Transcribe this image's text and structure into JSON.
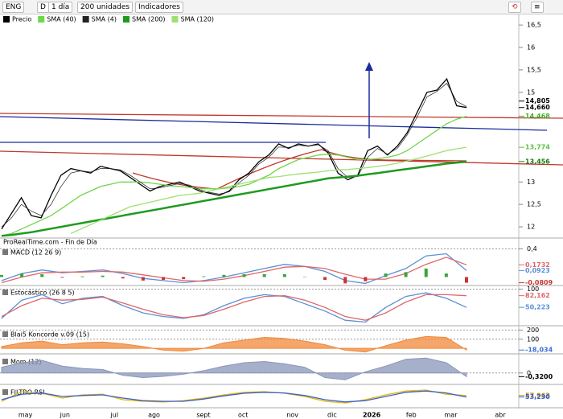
{
  "toolbar": {
    "symbol": "ENG",
    "period": "D",
    "interval": "1 día",
    "units": "200 unidades",
    "indicators": "Indicadores"
  },
  "chart_data": [
    {
      "type": "line",
      "source": "ProRealTime.com - Fin de Día",
      "categories": [
        null,
        null,
        "may",
        null,
        null,
        null,
        "jun",
        null,
        null,
        null,
        null,
        "jul",
        null,
        null,
        null,
        "ago",
        null,
        null,
        null,
        null,
        "sept",
        null,
        null,
        null,
        "oct",
        null,
        null,
        null,
        null,
        "nov",
        null,
        null,
        null,
        "dic",
        null,
        null,
        null,
        "2026",
        null,
        null,
        null,
        "feb",
        null,
        null,
        null,
        "mar",
        null,
        null,
        null,
        null,
        "abr",
        null
      ],
      "series": [
        {
          "name": "Precio",
          "color": "#000000",
          "values": [
            11.95,
            12.3,
            12.65,
            12.25,
            12.2,
            12.7,
            13.15,
            13.3,
            13.25,
            13.2,
            13.35,
            13.3,
            13.25,
            13.1,
            12.95,
            12.8,
            12.9,
            12.95,
            13.0,
            12.9,
            12.8,
            12.75,
            12.7,
            12.8,
            13.05,
            13.2,
            13.45,
            13.6,
            13.85,
            13.75,
            13.85,
            13.8,
            13.85,
            13.65,
            13.2,
            13.05,
            13.15,
            13.7,
            13.8,
            13.6,
            13.8,
            14.1,
            14.55,
            15.0,
            15.05,
            15.3,
            14.7,
            14.66,
            null,
            null,
            null,
            null
          ]
        },
        {
          "name": "SMA (40)",
          "color": "#6fd64a",
          "values": [
            11.8,
            11.85,
            11.95,
            12.05,
            12.15,
            12.25,
            12.4,
            12.55,
            12.7,
            12.8,
            12.9,
            12.95,
            13.0,
            13.0,
            13.0,
            12.98,
            12.95,
            12.92,
            12.9,
            12.88,
            12.85,
            12.85,
            12.85,
            12.87,
            12.9,
            12.95,
            13.05,
            13.15,
            13.3,
            13.4,
            13.5,
            13.55,
            13.6,
            13.62,
            13.6,
            13.55,
            13.5,
            13.5,
            13.52,
            13.55,
            13.6,
            13.7,
            13.85,
            14.0,
            14.15,
            14.3,
            14.4,
            14.468,
            null,
            null,
            null,
            null
          ]
        },
        {
          "name": "SMA (4)",
          "color": "#222222",
          "values": [
            12.0,
            12.2,
            12.5,
            12.35,
            12.25,
            12.5,
            12.9,
            13.2,
            13.25,
            13.22,
            13.3,
            13.3,
            13.27,
            13.15,
            13.0,
            12.85,
            12.87,
            12.92,
            12.97,
            12.93,
            12.83,
            12.77,
            12.73,
            12.78,
            12.98,
            13.15,
            13.4,
            13.55,
            13.78,
            13.77,
            13.82,
            13.8,
            13.83,
            13.7,
            13.3,
            13.1,
            13.12,
            13.55,
            13.75,
            13.62,
            13.75,
            14.05,
            14.45,
            14.9,
            15.02,
            15.2,
            14.8,
            14.68,
            null,
            null,
            null,
            null
          ]
        },
        {
          "name": "SMA (200)",
          "color": "#1f9a1f",
          "values": [
            11.8,
            11.82,
            11.85,
            11.88,
            11.92,
            11.96,
            12.0,
            12.04,
            12.08,
            12.12,
            12.16,
            12.2,
            12.24,
            12.28,
            12.32,
            12.36,
            12.4,
            12.44,
            12.48,
            12.52,
            12.56,
            12.6,
            12.64,
            12.68,
            12.72,
            12.76,
            12.8,
            12.84,
            12.88,
            12.92,
            12.96,
            13.0,
            13.04,
            13.08,
            13.1,
            13.12,
            13.14,
            13.17,
            13.2,
            13.23,
            13.26,
            13.29,
            13.32,
            13.35,
            13.38,
            13.41,
            13.43,
            13.456,
            null,
            null,
            null,
            null
          ]
        },
        {
          "name": "SMA (120)",
          "color": "#9ee070",
          "values": [
            null,
            null,
            null,
            null,
            null,
            null,
            null,
            11.85,
            11.95,
            12.05,
            12.15,
            12.25,
            12.35,
            12.45,
            12.5,
            12.55,
            12.6,
            12.65,
            12.7,
            12.72,
            12.75,
            12.8,
            12.85,
            12.9,
            12.95,
            13.0,
            13.05,
            13.1,
            13.12,
            13.15,
            13.18,
            13.2,
            13.22,
            13.25,
            13.27,
            13.28,
            13.3,
            13.32,
            13.35,
            13.38,
            13.42,
            13.47,
            13.52,
            13.58,
            13.64,
            13.7,
            13.74,
            13.774,
            null,
            null,
            null,
            null
          ]
        }
      ],
      "ylim": [
        11.75,
        16.7
      ],
      "yticks": [
        {
          "value": 12,
          "label": "12"
        },
        {
          "value": 12.5,
          "label": "12,5"
        },
        {
          "value": 13,
          "label": "13"
        },
        {
          "value": 15,
          "label": "15"
        },
        {
          "value": 15.5,
          "label": "15,5"
        },
        {
          "value": 16,
          "label": "16"
        },
        {
          "value": 16.5,
          "label": "16,5"
        }
      ],
      "last_values": [
        {
          "value": 14.805,
          "label": "14,805",
          "color": "#000000"
        },
        {
          "value": 14.66,
          "label": "14,660",
          "color": "#000000"
        },
        {
          "value": 14.468,
          "label": "14,468",
          "color": "#3fae2a"
        },
        {
          "value": 13.774,
          "label": "13,774",
          "color": "#5cc040"
        },
        {
          "value": 13.456,
          "label": "13,456",
          "color": "#157a15"
        }
      ]
    },
    {
      "type": "line",
      "title": "MACD (12 26 9)",
      "series": [
        {
          "color": "#5b8fd6",
          "values": [
            -0.05,
            0.05,
            0.1,
            0.06,
            0.08,
            0.1,
            0.05,
            -0.02,
            -0.05,
            -0.08,
            -0.05,
            0.0,
            0.06,
            0.12,
            0.18,
            0.15,
            0.08,
            -0.05,
            -0.09,
            0.02,
            0.12,
            0.3,
            0.33,
            0.0923
          ]
        },
        {
          "color": "#e06666",
          "values": [
            -0.08,
            0.0,
            0.06,
            0.07,
            0.07,
            0.08,
            0.07,
            0.03,
            -0.01,
            -0.05,
            -0.06,
            -0.03,
            0.02,
            0.08,
            0.14,
            0.15,
            0.12,
            0.04,
            -0.03,
            -0.03,
            0.05,
            0.18,
            0.28,
            0.1732
          ]
        },
        {
          "color": "#3aa53a",
          "style": "bar",
          "values": [
            0.03,
            0.05,
            0.04,
            -0.01,
            0.01,
            0.02,
            -0.02,
            -0.05,
            -0.04,
            -0.03,
            0.01,
            0.03,
            0.04,
            0.04,
            0.04,
            0,
            -0.04,
            -0.09,
            -0.06,
            0.05,
            0.07,
            0.12,
            0.05,
            -0.0809
          ]
        }
      ],
      "ylim": [
        -0.12,
        0.45
      ],
      "yticks": [
        {
          "value": 0.4,
          "label": "0,4"
        }
      ],
      "last_values": [
        {
          "value": 0.1732,
          "label": "0,1732",
          "color": "#e06666"
        },
        {
          "value": 0.0923,
          "label": "0,0923",
          "color": "#5b8fd6"
        },
        {
          "value": -0.0809,
          "label": "-0,0809",
          "color": "#cc3333"
        }
      ]
    },
    {
      "type": "line",
      "title": "Estocástico (26 8 5)",
      "series": [
        {
          "color": "#5b8fd6",
          "values": [
            20,
            70,
            85,
            60,
            75,
            80,
            55,
            35,
            25,
            20,
            30,
            55,
            75,
            85,
            80,
            60,
            40,
            15,
            10,
            50,
            80,
            90,
            75,
            50.223
          ]
        },
        {
          "color": "#e06666",
          "values": [
            25,
            55,
            75,
            70,
            72,
            78,
            62,
            45,
            30,
            22,
            28,
            45,
            65,
            80,
            82,
            70,
            50,
            25,
            15,
            35,
            65,
            85,
            85,
            82.162
          ]
        }
      ],
      "ylim": [
        0,
        110
      ],
      "yticks": [
        100
      ],
      "last_values": [
        {
          "value": 82.162,
          "label": "82,162",
          "color": "#e06666"
        },
        {
          "value": 50.223,
          "label": "50,223",
          "color": "#5b8fd6"
        }
      ]
    },
    {
      "type": "line",
      "title": "Blai5 Koncorde v.09 (15)",
      "series": [
        {
          "color": "#f0883a",
          "style": "area",
          "values": [
            20,
            60,
            80,
            40,
            60,
            70,
            50,
            20,
            -20,
            -30,
            0,
            60,
            90,
            120,
            110,
            80,
            40,
            -20,
            -40,
            30,
            90,
            130,
            120,
            -18.034
          ]
        }
      ],
      "ylim": [
        -60,
        230
      ],
      "yticks": [
        100,
        200
      ],
      "last_values": [
        {
          "value": -18.034,
          "label": "-18,034",
          "color": "#3a6fd6"
        }
      ]
    },
    {
      "type": "line",
      "title": "Mom (12)",
      "series": [
        {
          "color": "#8a96b8",
          "style": "area",
          "values": [
            0.5,
            0.9,
            1.1,
            0.6,
            0.4,
            0.3,
            -0.2,
            -0.4,
            -0.3,
            -0.1,
            0.2,
            0.6,
            0.9,
            1.0,
            0.8,
            0.5,
            -0.4,
            -0.6,
            0.1,
            0.6,
            1.2,
            1.3,
            0.9,
            -0.32
          ]
        }
      ],
      "ylim": [
        -1.0,
        1.6
      ],
      "yticks": [
        0
      ],
      "last_values": [
        {
          "value": -0.32,
          "label": "-0,3200",
          "color": "#000000"
        }
      ]
    },
    {
      "type": "line",
      "title": "FILTRO RSI",
      "series": [
        {
          "color": "#e0b800",
          "values": [
            40,
            70,
            65,
            50,
            60,
            62,
            45,
            40,
            38,
            42,
            50,
            60,
            68,
            70,
            65,
            55,
            40,
            35,
            45,
            60,
            72,
            75,
            62,
            57.963
          ]
        },
        {
          "color": "#3a5fd6",
          "values": [
            45,
            62,
            66,
            55,
            58,
            60,
            50,
            42,
            40,
            40,
            47,
            57,
            65,
            68,
            66,
            58,
            45,
            38,
            42,
            55,
            68,
            72,
            66,
            53.23
          ]
        }
      ],
      "ylim": [
        20,
        90
      ],
      "yticks": [],
      "last_values": [
        {
          "value": 57.963,
          "label": "57,963",
          "color": "#b08a00"
        },
        {
          "value": 53.23,
          "label": "53,230",
          "color": "#3a5fd6"
        }
      ]
    }
  ]
}
